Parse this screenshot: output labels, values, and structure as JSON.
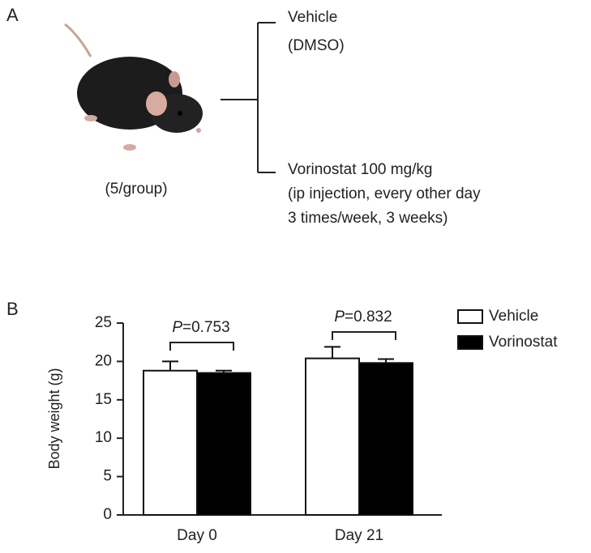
{
  "panel_a": {
    "label": "A",
    "group_size": "(5/group)",
    "arms": [
      {
        "lines": [
          "Vehicle",
          "(DMSO)"
        ]
      },
      {
        "lines": [
          "Vorinostat 100 mg/kg",
          "(ip injection, every other day",
          "3 times/week, 3 weeks)"
        ]
      }
    ]
  },
  "chart_data": {
    "type": "bar",
    "panel_label": "B",
    "ylabel": "Body weight (g)",
    "categories": [
      "Day 0",
      "Day 21"
    ],
    "series": [
      {
        "name": "Vehicle",
        "color": "#ffffff",
        "values": [
          18.8,
          20.4
        ],
        "errors": [
          1.2,
          1.5
        ]
      },
      {
        "name": "Vorinostat",
        "color": "#000000",
        "values": [
          18.5,
          19.8
        ],
        "errors": [
          0.3,
          0.5
        ]
      }
    ],
    "ylim": [
      0,
      25
    ],
    "yticks": [
      0,
      5,
      10,
      15,
      20,
      25
    ],
    "legend": "right",
    "annotations": [
      {
        "prefix": "P",
        "text": "=0.753"
      },
      {
        "prefix": "P",
        "text": "=0.832"
      }
    ]
  }
}
